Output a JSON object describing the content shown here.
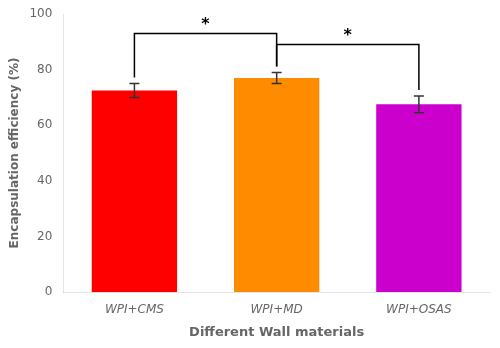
{
  "chart_data": {
    "type": "bar",
    "categories": [
      "WPI+CMS",
      "WPI+MD",
      "WPI+OSAS"
    ],
    "values": [
      72.5,
      77.0,
      67.5
    ],
    "errors": [
      2.5,
      2.0,
      3.0
    ],
    "colors": [
      "#ff0000",
      "#ff8c00",
      "#cc00cc"
    ],
    "xlabel": "Different Wall materials",
    "ylabel": "Encapsulation efficiency (%)",
    "ylim": [
      0,
      100
    ],
    "yticks": [
      0,
      20,
      40,
      60,
      80,
      100
    ],
    "grid": false,
    "annotations": [
      {
        "text": "*",
        "from": "WPI+CMS",
        "to": "WPI+MD",
        "y": 93
      },
      {
        "text": "*",
        "from": "WPI+MD",
        "to": "WPI+OSAS",
        "y": 89
      }
    ]
  }
}
